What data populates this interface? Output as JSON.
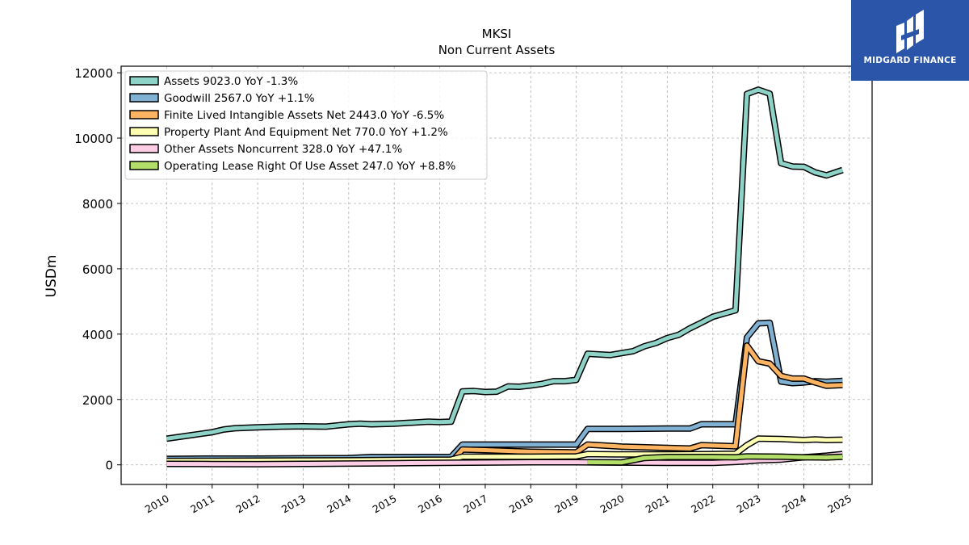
{
  "chart_data": {
    "type": "line",
    "title": "MKSI",
    "subtitle": "Non Current  Assets",
    "ylabel": "USDm",
    "xlabel": "",
    "ylim": [
      -600,
      12200
    ],
    "xlim": [
      2009.0,
      2025.5
    ],
    "grid": true,
    "legend_position": "top-left",
    "x_ticks": [
      "2010",
      "2011",
      "2012",
      "2013",
      "2014",
      "2015",
      "2016",
      "2017",
      "2018",
      "2019",
      "2020",
      "2021",
      "2022",
      "2023",
      "2024",
      "2025"
    ],
    "y_ticks": [
      "0",
      "2000",
      "4000",
      "6000",
      "8000",
      "10000",
      "12000"
    ],
    "series": [
      {
        "name": "Assets",
        "legend": "Assets  9023.0 YoY -1.3%",
        "color": "#8dd3c7",
        "points": [
          [
            2010.0,
            800
          ],
          [
            2010.5,
            900
          ],
          [
            2011.0,
            1000
          ],
          [
            2011.25,
            1080
          ],
          [
            2011.5,
            1120
          ],
          [
            2012.0,
            1150
          ],
          [
            2012.5,
            1170
          ],
          [
            2013.0,
            1180
          ],
          [
            2013.5,
            1170
          ],
          [
            2014.0,
            1240
          ],
          [
            2014.25,
            1260
          ],
          [
            2014.5,
            1240
          ],
          [
            2015.0,
            1260
          ],
          [
            2015.25,
            1280
          ],
          [
            2015.75,
            1320
          ],
          [
            2016.0,
            1310
          ],
          [
            2016.25,
            1320
          ],
          [
            2016.5,
            2250
          ],
          [
            2016.75,
            2260
          ],
          [
            2017.0,
            2230
          ],
          [
            2017.25,
            2240
          ],
          [
            2017.5,
            2400
          ],
          [
            2017.75,
            2390
          ],
          [
            2018.0,
            2430
          ],
          [
            2018.25,
            2480
          ],
          [
            2018.5,
            2560
          ],
          [
            2018.75,
            2560
          ],
          [
            2019.0,
            2600
          ],
          [
            2019.25,
            3400
          ],
          [
            2019.75,
            3360
          ],
          [
            2020.0,
            3420
          ],
          [
            2020.25,
            3480
          ],
          [
            2020.5,
            3630
          ],
          [
            2020.75,
            3730
          ],
          [
            2021.0,
            3880
          ],
          [
            2021.25,
            3980
          ],
          [
            2021.5,
            4180
          ],
          [
            2021.75,
            4350
          ],
          [
            2022.0,
            4530
          ],
          [
            2022.25,
            4630
          ],
          [
            2022.5,
            4730
          ],
          [
            2022.75,
            11350
          ],
          [
            2023.0,
            11480
          ],
          [
            2023.25,
            11360
          ],
          [
            2023.5,
            9230
          ],
          [
            2023.75,
            9130
          ],
          [
            2024.0,
            9120
          ],
          [
            2024.25,
            8950
          ],
          [
            2024.5,
            8860
          ],
          [
            2024.85,
            9023
          ]
        ]
      },
      {
        "name": "Goodwill",
        "legend": "Goodwill  2567.0 YoY +1.1%",
        "color": "#80b1d3",
        "points": [
          [
            2010.0,
            180
          ],
          [
            2011.0,
            190
          ],
          [
            2012.0,
            190
          ],
          [
            2013.0,
            200
          ],
          [
            2014.0,
            205
          ],
          [
            2014.5,
            240
          ],
          [
            2015.0,
            240
          ],
          [
            2016.0,
            240
          ],
          [
            2016.25,
            240
          ],
          [
            2016.5,
            620
          ],
          [
            2017.0,
            620
          ],
          [
            2018.0,
            620
          ],
          [
            2019.0,
            620
          ],
          [
            2019.25,
            1100
          ],
          [
            2020.0,
            1100
          ],
          [
            2021.0,
            1110
          ],
          [
            2021.5,
            1110
          ],
          [
            2021.75,
            1240
          ],
          [
            2022.5,
            1240
          ],
          [
            2022.75,
            3900
          ],
          [
            2023.0,
            4330
          ],
          [
            2023.25,
            4350
          ],
          [
            2023.5,
            2550
          ],
          [
            2023.75,
            2500
          ],
          [
            2024.0,
            2520
          ],
          [
            2024.25,
            2560
          ],
          [
            2024.5,
            2540
          ],
          [
            2024.85,
            2567
          ]
        ]
      },
      {
        "name": "Finite Lived Intangible Assets Net",
        "legend": "Finite Lived Intangible Assets Net  2443.0 YoY -6.5%",
        "color": "#fdb462",
        "points": [
          [
            2010.0,
            100
          ],
          [
            2011.0,
            95
          ],
          [
            2012.0,
            90
          ],
          [
            2013.0,
            90
          ],
          [
            2014.0,
            85
          ],
          [
            2015.0,
            80
          ],
          [
            2016.25,
            75
          ],
          [
            2016.5,
            470
          ],
          [
            2017.0,
            450
          ],
          [
            2018.0,
            400
          ],
          [
            2019.0,
            380
          ],
          [
            2019.25,
            620
          ],
          [
            2020.0,
            560
          ],
          [
            2021.0,
            520
          ],
          [
            2021.5,
            500
          ],
          [
            2021.75,
            600
          ],
          [
            2022.5,
            570
          ],
          [
            2022.75,
            3650
          ],
          [
            2023.0,
            3170
          ],
          [
            2023.25,
            3100
          ],
          [
            2023.5,
            2720
          ],
          [
            2023.75,
            2640
          ],
          [
            2024.0,
            2640
          ],
          [
            2024.25,
            2520
          ],
          [
            2024.5,
            2420
          ],
          [
            2024.85,
            2443
          ]
        ]
      },
      {
        "name": "Property Plant And Equipment Net",
        "legend": "Property Plant And Equipment Net  770.0 YoY +1.2%",
        "color": "#ffffb3",
        "points": [
          [
            2010.0,
            120
          ],
          [
            2011.0,
            125
          ],
          [
            2012.0,
            130
          ],
          [
            2013.0,
            135
          ],
          [
            2014.0,
            140
          ],
          [
            2015.0,
            150
          ],
          [
            2016.25,
            160
          ],
          [
            2016.5,
            250
          ],
          [
            2017.0,
            250
          ],
          [
            2018.0,
            250
          ],
          [
            2019.0,
            260
          ],
          [
            2019.25,
            330
          ],
          [
            2020.0,
            320
          ],
          [
            2021.0,
            320
          ],
          [
            2022.0,
            330
          ],
          [
            2022.5,
            340
          ],
          [
            2022.75,
            600
          ],
          [
            2023.0,
            800
          ],
          [
            2023.5,
            790
          ],
          [
            2024.0,
            760
          ],
          [
            2024.25,
            780
          ],
          [
            2024.5,
            760
          ],
          [
            2024.85,
            770
          ]
        ]
      },
      {
        "name": "Other Assets Noncurrent",
        "legend": "Other Assets Noncurrent  328.0 YoY +47.1%",
        "color": "#fccde5",
        "points": [
          [
            2010.0,
            30
          ],
          [
            2011.0,
            25
          ],
          [
            2012.0,
            20
          ],
          [
            2013.0,
            30
          ],
          [
            2014.0,
            40
          ],
          [
            2015.0,
            50
          ],
          [
            2016.0,
            60
          ],
          [
            2017.0,
            70
          ],
          [
            2018.0,
            80
          ],
          [
            2019.0,
            80
          ],
          [
            2020.0,
            70
          ],
          [
            2021.0,
            60
          ],
          [
            2022.0,
            60
          ],
          [
            2022.5,
            90
          ],
          [
            2022.75,
            110
          ],
          [
            2023.0,
            140
          ],
          [
            2023.5,
            160
          ],
          [
            2024.0,
            230
          ],
          [
            2024.5,
            280
          ],
          [
            2024.85,
            328
          ]
        ]
      },
      {
        "name": "Operating Lease Right Of Use Asset",
        "legend": "Operating Lease Right Of Use Asset  247.0 YoY +8.8%",
        "color": "#b3de69",
        "points": [
          [
            2019.25,
            80
          ],
          [
            2020.0,
            75
          ],
          [
            2020.5,
            210
          ],
          [
            2021.0,
            240
          ],
          [
            2022.0,
            240
          ],
          [
            2022.5,
            230
          ],
          [
            2022.75,
            260
          ],
          [
            2023.5,
            250
          ],
          [
            2024.0,
            230
          ],
          [
            2024.5,
            225
          ],
          [
            2024.85,
            247
          ]
        ]
      }
    ]
  },
  "logo": {
    "text": "MIDGARD FINANCE"
  }
}
